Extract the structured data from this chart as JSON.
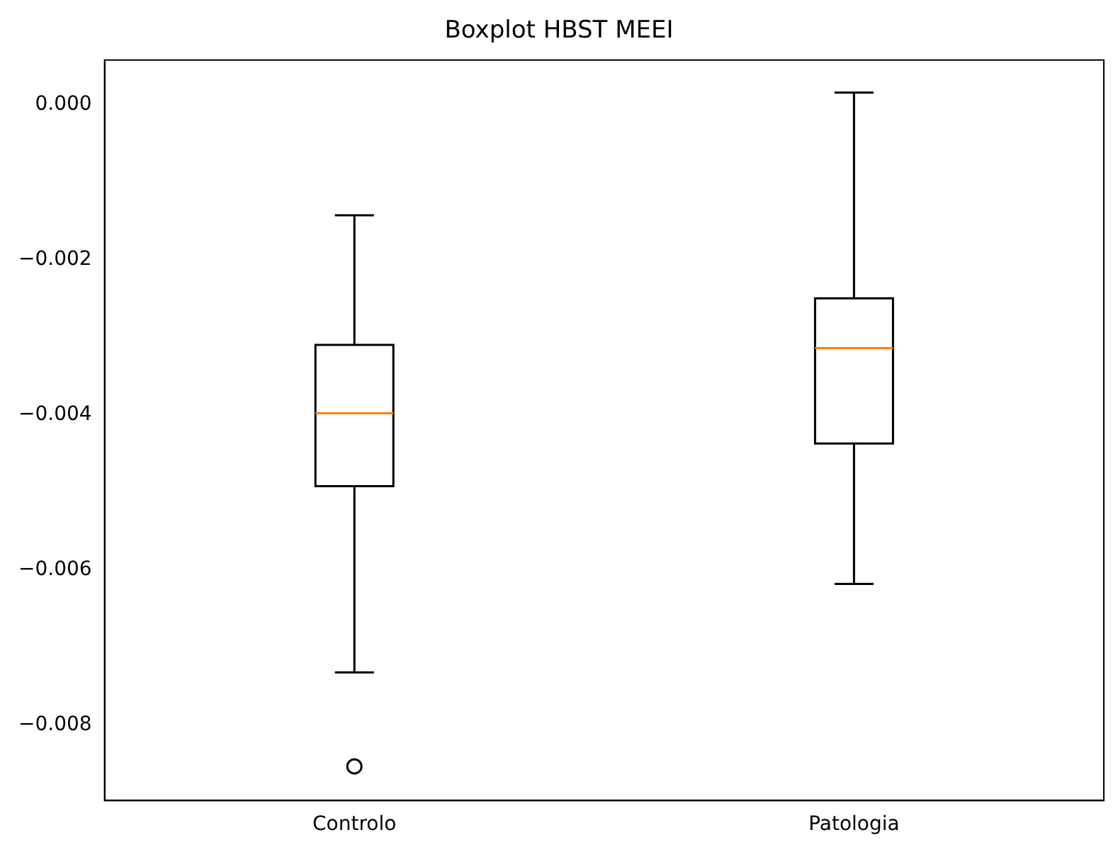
{
  "chart_data": {
    "type": "box",
    "title": "Boxplot HBST MEEI",
    "categories": [
      "Controlo",
      "Patologia"
    ],
    "boxes": [
      {
        "low": -0.00732,
        "q1": -0.00492,
        "median": -0.00398,
        "q3": -0.0031,
        "high": -0.00143,
        "outliers": [
          -0.00853
        ]
      },
      {
        "low": -0.00618,
        "q1": -0.00437,
        "median": -0.00314,
        "q3": -0.0025,
        "high": 0.00015
      }
    ],
    "color": "#000000",
    "ylim": [
      -0.00897,
      0.00057
    ],
    "yticks": [
      {
        "value": 0,
        "label": "0.000"
      },
      {
        "value": -0.002,
        "label": "−0.002"
      },
      {
        "value": -0.004,
        "label": "−0.004"
      },
      {
        "value": -0.006,
        "label": "−0.006"
      },
      {
        "value": -0.008,
        "label": "−0.008"
      }
    ],
    "grid": false
  }
}
